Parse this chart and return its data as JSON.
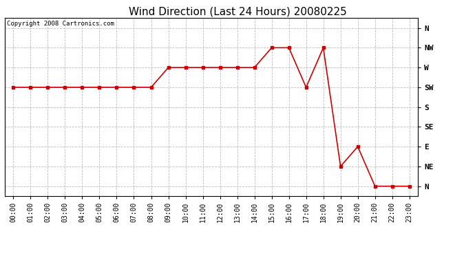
{
  "title": "Wind Direction (Last 24 Hours) 20080225",
  "copyright": "Copyright 2008 Cartronics.com",
  "x_labels": [
    "00:00",
    "01:00",
    "02:00",
    "03:00",
    "04:00",
    "05:00",
    "06:00",
    "07:00",
    "08:00",
    "09:00",
    "10:00",
    "11:00",
    "12:00",
    "13:00",
    "14:00",
    "15:00",
    "16:00",
    "17:00",
    "18:00",
    "19:00",
    "20:00",
    "21:00",
    "22:00",
    "23:00"
  ],
  "y_labels": [
    "N",
    "NE",
    "E",
    "SE",
    "S",
    "SW",
    "W",
    "NW",
    "N"
  ],
  "y_values": [
    0,
    1,
    2,
    3,
    4,
    5,
    6,
    7,
    8
  ],
  "data_x": [
    0,
    1,
    2,
    3,
    4,
    5,
    6,
    7,
    8,
    9,
    10,
    11,
    12,
    13,
    14,
    15,
    16,
    17,
    18,
    19,
    20,
    21,
    22,
    23
  ],
  "data_y": [
    5,
    5,
    5,
    5,
    5,
    5,
    5,
    5,
    5,
    6,
    6,
    6,
    6,
    6,
    6,
    7,
    7,
    5,
    7,
    1,
    2,
    0,
    0,
    0
  ],
  "line_color": "#cc0000",
  "marker": "s",
  "marker_size": 3,
  "bg_color": "#ffffff",
  "plot_bg_color": "#ffffff",
  "grid_color": "#bbbbbb",
  "title_fontsize": 11,
  "copyright_fontsize": 6.5,
  "axis_label_fontsize": 7,
  "y_label_fontsize": 8
}
